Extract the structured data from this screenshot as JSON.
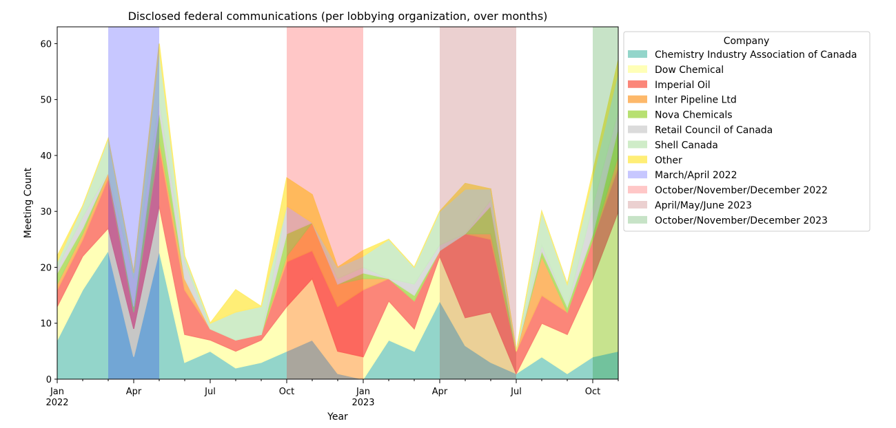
{
  "chart_data": {
    "type": "area",
    "stacked": true,
    "title": "Disclosed federal communications (per lobbying organization, over months)",
    "xlabel": "Year",
    "ylabel": "Meeting Count",
    "ylim": [
      0,
      63
    ],
    "yticks": [
      0,
      10,
      20,
      30,
      40,
      50,
      60
    ],
    "x": [
      "2022-01",
      "2022-02",
      "2022-03",
      "2022-04",
      "2022-05",
      "2022-06",
      "2022-07",
      "2022-08",
      "2022-09",
      "2022-10",
      "2022-11",
      "2022-12",
      "2023-01",
      "2023-02",
      "2023-03",
      "2023-04",
      "2023-05",
      "2023-06",
      "2023-07",
      "2023-08",
      "2023-09",
      "2023-10",
      "2023-11"
    ],
    "xticks": [
      {
        "i": 0,
        "label": "Jan",
        "sub": "2022"
      },
      {
        "i": 3,
        "label": "Apr"
      },
      {
        "i": 6,
        "label": "Jul"
      },
      {
        "i": 9,
        "label": "Oct"
      },
      {
        "i": 12,
        "label": "Jan",
        "sub": "2023"
      },
      {
        "i": 15,
        "label": "Apr"
      },
      {
        "i": 18,
        "label": "Jul"
      },
      {
        "i": 21,
        "label": "Oct"
      }
    ],
    "legend_title": "Company",
    "legend_position": "outside-right-top",
    "series": [
      {
        "name": "Chemistry Industry Association of Canada",
        "color": "#8dd3c7",
        "values": [
          7,
          16,
          23,
          4,
          23,
          3,
          5,
          2,
          3,
          5,
          7,
          1,
          0,
          7,
          5,
          14,
          6,
          3,
          1,
          4,
          1,
          4,
          5
        ]
      },
      {
        "name": "Dow Chemical",
        "color": "#ffffb3",
        "values": [
          6,
          6,
          4,
          5,
          8,
          5,
          2,
          3,
          4,
          8,
          11,
          4,
          4,
          7,
          4,
          8,
          5,
          9,
          0,
          6,
          7,
          14,
          25
        ]
      },
      {
        "name": "Imperial Oil",
        "color": "#fb8072",
        "values": [
          3,
          3,
          9,
          3,
          11,
          8,
          2,
          2,
          1,
          8,
          5,
          8,
          12,
          4,
          5,
          1,
          15,
          13,
          4,
          5,
          4,
          7,
          8
        ]
      },
      {
        "name": "Inter Pipeline Ltd",
        "color": "#fdb462",
        "values": [
          1,
          1,
          1,
          0,
          1,
          2,
          0,
          0,
          0,
          1,
          5,
          4,
          2,
          0,
          0,
          0,
          0,
          1,
          0,
          7,
          0,
          0,
          2
        ]
      },
      {
        "name": "Nova Chemicals",
        "color": "#b3de69",
        "values": [
          2,
          1,
          0,
          1,
          5,
          0,
          0,
          0,
          0,
          4,
          0,
          0,
          1,
          0,
          1,
          0,
          0,
          5,
          0,
          1,
          1,
          1,
          5
        ]
      },
      {
        "name": "Retail Council of Canada",
        "color": "#d9d9d9",
        "values": [
          1,
          2,
          0,
          5,
          2,
          3,
          0,
          0,
          0,
          5,
          0,
          1,
          1,
          0,
          2,
          1,
          0,
          1,
          0,
          1,
          0,
          5,
          3
        ]
      },
      {
        "name": "Shell Canada",
        "color": "#ccebc5",
        "values": [
          1,
          2,
          6,
          1,
          9,
          1,
          1,
          5,
          5,
          0,
          0,
          2,
          2,
          7,
          3,
          6,
          8,
          2,
          0,
          6,
          4,
          5,
          7
        ]
      },
      {
        "name": "Other",
        "color": "#ffed6f",
        "values": [
          1,
          0,
          0,
          0,
          1,
          0,
          0,
          4,
          0,
          5,
          5,
          0,
          1,
          0,
          0,
          0,
          1,
          0,
          0,
          0,
          0,
          1,
          2
        ]
      }
    ],
    "spans": [
      {
        "name": "March/April 2022",
        "color": "#0000ff",
        "start": 2,
        "end": 4
      },
      {
        "name": "October/November/December 2022",
        "color": "#ff0000",
        "start": 9,
        "end": 12
      },
      {
        "name": "April/May/June 2023",
        "color": "#a52a2a",
        "start": 15,
        "end": 18
      },
      {
        "name": "October/November/December 2023",
        "color": "#008000",
        "start": 21,
        "end": 24
      }
    ]
  }
}
